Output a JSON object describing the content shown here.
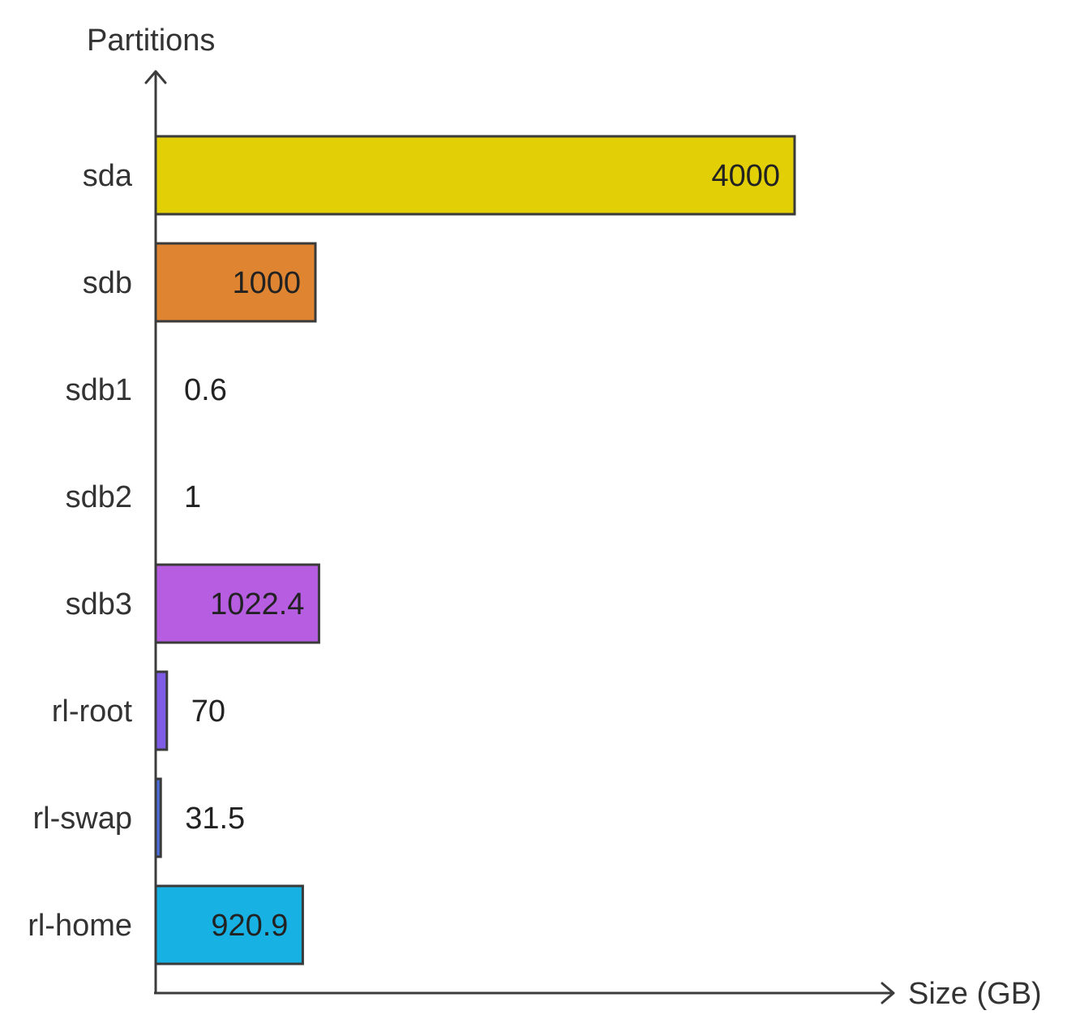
{
  "chart_data": {
    "type": "bar",
    "orientation": "horizontal",
    "title": "",
    "ylabel": "Partitions",
    "xlabel": "Size (GB)",
    "categories": [
      "sda",
      "sdb",
      "sdb1",
      "sdb2",
      "sdb3",
      "rl-root",
      "rl-swap",
      "rl-home"
    ],
    "values": [
      4000,
      1000,
      0.6,
      1,
      1022.4,
      70,
      31.5,
      920.9
    ],
    "value_labels": [
      "4000",
      "1000",
      "0.6",
      "1",
      "1022.4",
      "70",
      "31.5",
      "920.9"
    ],
    "colors": [
      "#e3cf06",
      "#df8532",
      "#e8e8e8",
      "#e8e8e8",
      "#b75de2",
      "#7e5ce6",
      "#4e6fdc",
      "#17b1e3"
    ],
    "xlim": [
      0,
      5000
    ],
    "grid": false,
    "legend": "none"
  }
}
